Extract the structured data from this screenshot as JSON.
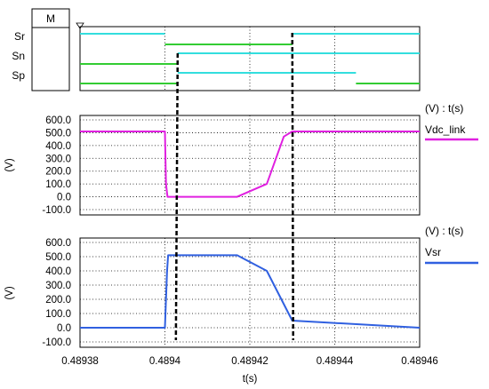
{
  "chart_data": [
    {
      "type": "line",
      "title": "",
      "meter_label": "M",
      "x": [
        0.48938,
        0.4894,
        0.48942,
        0.48944,
        0.48946
      ],
      "signals": [
        {
          "name": "Sr",
          "segments": [
            {
              "x0": 0.48938,
              "x1": 0.4894,
              "level": "high",
              "color": "#33dede"
            },
            {
              "x0": 0.4894,
              "x1": 0.48943,
              "level": "low",
              "color": "#33cc33"
            },
            {
              "x0": 0.48943,
              "x1": 0.48946,
              "level": "high",
              "color": "#33dede"
            }
          ]
        },
        {
          "name": "Sn",
          "segments": [
            {
              "x0": 0.48938,
              "x1": 0.489403,
              "level": "low",
              "color": "#33cc33"
            },
            {
              "x0": 0.489403,
              "x1": 0.48946,
              "level": "high",
              "color": "#33dede"
            }
          ]
        },
        {
          "name": "Sp",
          "segments": [
            {
              "x0": 0.48938,
              "x1": 0.489403,
              "level": "low",
              "color": "#33cc33"
            },
            {
              "x0": 0.489403,
              "x1": 0.489445,
              "level": "high",
              "color": "#33dede"
            },
            {
              "x0": 0.489445,
              "x1": 0.48946,
              "level": "low",
              "color": "#33cc33"
            }
          ]
        }
      ]
    },
    {
      "type": "line",
      "title": "(V) : t(s)",
      "ylabel": "(V)",
      "xlabel": "",
      "ylim": [
        -100,
        600
      ],
      "yticks": [
        "600.0",
        "500.0",
        "400.0",
        "300.0",
        "200.0",
        "100.0",
        "0.0",
        "-100.0"
      ],
      "grid": true,
      "series": [
        {
          "name": "Vdc_link",
          "color": "#e020e0",
          "x": [
            0.48938,
            0.4894,
            0.48940025,
            0.4894006,
            0.48941,
            0.489417,
            0.489424,
            0.489428,
            0.48943,
            0.48946
          ],
          "y": [
            510,
            510,
            100,
            0,
            0,
            0,
            100,
            470,
            510,
            510
          ]
        }
      ]
    },
    {
      "type": "line",
      "title": "(V) : t(s)",
      "ylabel": "(V)",
      "xlabel": "t(s)",
      "ylim": [
        -100,
        600
      ],
      "yticks": [
        "600.0",
        "500.0",
        "400.0",
        "300.0",
        "200.0",
        "100.0",
        "0.0",
        "-100.0"
      ],
      "xticks": [
        "0.48938",
        "0.4894",
        "0.48942",
        "0.48944",
        "0.48946"
      ],
      "xtick_values": [
        0.48938,
        0.4894,
        0.48942,
        0.48944,
        0.48946
      ],
      "grid": true,
      "series": [
        {
          "name": "Vsr",
          "color": "#3060e0",
          "x": [
            0.48938,
            0.4894,
            0.4894005,
            0.48940075,
            0.48941,
            0.489417,
            0.489424,
            0.48943,
            0.48946
          ],
          "y": [
            0,
            0,
            400,
            510,
            510,
            510,
            400,
            50,
            0
          ]
        }
      ]
    }
  ],
  "annotations": {
    "dashed_markers_x": [
      0.489403,
      0.48943
    ]
  }
}
